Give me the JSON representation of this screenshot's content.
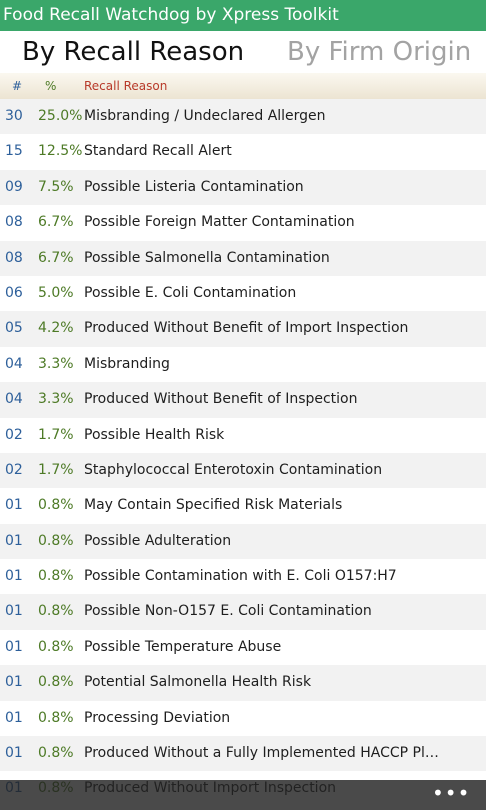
{
  "app": {
    "title": "Food Recall Watchdog by Xpress Toolkit"
  },
  "pivot": {
    "active": "By Recall Reason",
    "inactive": "By Firm Origin"
  },
  "columns": {
    "count": "#",
    "percent": "%",
    "reason": "Recall Reason"
  },
  "rows": [
    {
      "count": "30",
      "percent": "25.0%",
      "reason": "Misbranding / Undeclared Allergen"
    },
    {
      "count": "15",
      "percent": "12.5%",
      "reason": "Standard Recall Alert"
    },
    {
      "count": "09",
      "percent": "7.5%",
      "reason": "Possible Listeria Contamination"
    },
    {
      "count": "08",
      "percent": "6.7%",
      "reason": "Possible Foreign Matter Contamination"
    },
    {
      "count": "08",
      "percent": "6.7%",
      "reason": "Possible Salmonella Contamination"
    },
    {
      "count": "06",
      "percent": "5.0%",
      "reason": "Possible E. Coli Contamination"
    },
    {
      "count": "05",
      "percent": "4.2%",
      "reason": "Produced Without Benefit of Import Inspection"
    },
    {
      "count": "04",
      "percent": "3.3%",
      "reason": "Misbranding"
    },
    {
      "count": "04",
      "percent": "3.3%",
      "reason": "Produced Without Benefit of Inspection"
    },
    {
      "count": "02",
      "percent": "1.7%",
      "reason": "Possible Health Risk"
    },
    {
      "count": "02",
      "percent": "1.7%",
      "reason": "Staphylococcal Enterotoxin Contamination"
    },
    {
      "count": "01",
      "percent": "0.8%",
      "reason": "May Contain Specified Risk Materials"
    },
    {
      "count": "01",
      "percent": "0.8%",
      "reason": "Possible Adulteration"
    },
    {
      "count": "01",
      "percent": "0.8%",
      "reason": "Possible Contamination with E. Coli O157:H7"
    },
    {
      "count": "01",
      "percent": "0.8%",
      "reason": "Possible Non-O157 E. Coli Contamination"
    },
    {
      "count": "01",
      "percent": "0.8%",
      "reason": "Possible Temperature Abuse"
    },
    {
      "count": "01",
      "percent": "0.8%",
      "reason": "Potential Salmonella Health Risk"
    },
    {
      "count": "01",
      "percent": "0.8%",
      "reason": "Processing Deviation"
    },
    {
      "count": "01",
      "percent": "0.8%",
      "reason": "Produced Without a Fully Implemented HACCP Plan, C..."
    },
    {
      "count": "01",
      "percent": "0.8%",
      "reason": "Produced Without Import Inspection"
    }
  ],
  "appbar": {
    "more_label": "•••",
    "more_icon": "ellipsis-icon"
  },
  "colors": {
    "title_bar": "#3aa76a",
    "count_text": "#2d5f9a",
    "percent_text": "#4d7a26",
    "reason_header": "#b83a2a"
  }
}
